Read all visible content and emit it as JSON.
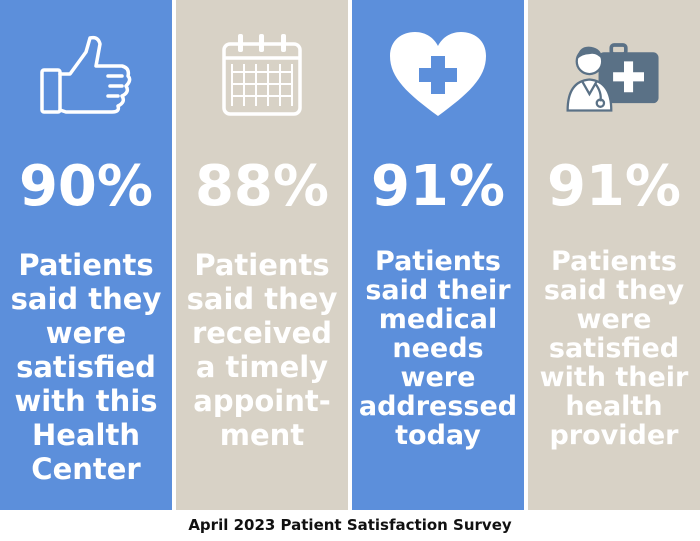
{
  "colors": {
    "blue": "#5c8fdb",
    "tan": "#d8d2c6",
    "text": "#ffffff",
    "footer_text": "#111111"
  },
  "panels": [
    {
      "icon": "thumbs-up-icon",
      "stat": "90%",
      "lines": [
        "Patients",
        "said they",
        "were",
        "satisfied",
        "with this",
        "Health",
        "Center"
      ]
    },
    {
      "icon": "calendar-icon",
      "stat": "88%",
      "lines": [
        "Patients",
        "said they",
        "received",
        "a timely",
        "appoint-",
        "ment"
      ]
    },
    {
      "icon": "heart-medical-icon",
      "stat": "91%",
      "lines": [
        "Patients",
        "said their",
        "medical",
        "needs",
        "were",
        "addressed",
        "today"
      ]
    },
    {
      "icon": "doctor-kit-icon",
      "stat": "91%",
      "lines": [
        "Patients",
        "said they",
        "were",
        "satisfied",
        "with their",
        "health",
        "provider"
      ]
    }
  ],
  "footer": "April 2023 Patient Satisfaction Survey"
}
